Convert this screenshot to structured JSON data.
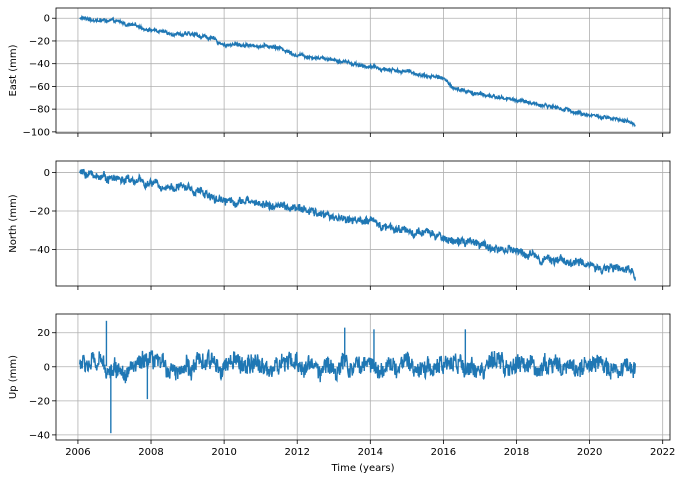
{
  "chart_data": [
    {
      "type": "line",
      "name": "east-panel",
      "ylabel": "East (mm)",
      "xlim": [
        2005.4,
        2022.2
      ],
      "ylim": [
        -101,
        9
      ],
      "yticks": [
        0,
        -20,
        -40,
        -60,
        -80,
        -100
      ],
      "xticks": [
        2006,
        2008,
        2010,
        2012,
        2014,
        2016,
        2018,
        2020,
        2022
      ],
      "show_xtick_labels": false,
      "grid": true,
      "color": "#1f77b4",
      "trend": [
        [
          2006.05,
          0
        ],
        [
          2007.0,
          -3
        ],
        [
          2008.3,
          -12
        ],
        [
          2009.5,
          -16
        ],
        [
          2010.0,
          -23
        ],
        [
          2011.0,
          -24
        ],
        [
          2011.5,
          -26
        ],
        [
          2012.0,
          -32
        ],
        [
          2013.0,
          -36
        ],
        [
          2014.0,
          -43
        ],
        [
          2015.0,
          -47
        ],
        [
          2016.0,
          -53
        ],
        [
          2016.3,
          -62
        ],
        [
          2017.0,
          -67
        ],
        [
          2018.0,
          -72
        ],
        [
          2019.0,
          -78
        ],
        [
          2020.0,
          -85
        ],
        [
          2021.25,
          -93
        ]
      ],
      "noise_sd": 1.2,
      "spikes": []
    },
    {
      "type": "line",
      "name": "north-panel",
      "ylabel": "North (mm)",
      "xlim": [
        2005.4,
        2022.2
      ],
      "ylim": [
        -59,
        6
      ],
      "yticks": [
        0,
        -20,
        -40
      ],
      "xticks": [
        2006,
        2008,
        2010,
        2012,
        2014,
        2016,
        2018,
        2020,
        2022
      ],
      "show_xtick_labels": false,
      "grid": true,
      "color": "#1f77b4",
      "trend": [
        [
          2006.05,
          0
        ],
        [
          2007.0,
          -3
        ],
        [
          2008.0,
          -6
        ],
        [
          2009.0,
          -8
        ],
        [
          2010.0,
          -14
        ],
        [
          2011.0,
          -16
        ],
        [
          2012.0,
          -19
        ],
        [
          2013.0,
          -23
        ],
        [
          2014.0,
          -26
        ],
        [
          2015.0,
          -30
        ],
        [
          2016.0,
          -34
        ],
        [
          2017.0,
          -38
        ],
        [
          2018.0,
          -41
        ],
        [
          2019.0,
          -45
        ],
        [
          2020.0,
          -48
        ],
        [
          2021.25,
          -52
        ]
      ],
      "noise_sd": 1.6,
      "spikes": []
    },
    {
      "type": "line",
      "name": "up-panel",
      "ylabel": "Up (mm)",
      "xlabel": "Time (years)",
      "xlim": [
        2005.4,
        2022.2
      ],
      "ylim": [
        -43,
        31
      ],
      "yticks": [
        20,
        0,
        -20,
        -40
      ],
      "xticks": [
        2006,
        2008,
        2010,
        2012,
        2014,
        2016,
        2018,
        2020,
        2022
      ],
      "show_xtick_labels": true,
      "grid": true,
      "color": "#1f77b4",
      "trend": [
        [
          2006.05,
          2
        ],
        [
          2007.0,
          0
        ],
        [
          2008.0,
          0
        ],
        [
          2009.0,
          0
        ],
        [
          2010.0,
          2
        ],
        [
          2011.0,
          0
        ],
        [
          2012.0,
          1
        ],
        [
          2013.0,
          0
        ],
        [
          2014.0,
          1
        ],
        [
          2015.0,
          0
        ],
        [
          2016.0,
          1
        ],
        [
          2017.0,
          0
        ],
        [
          2018.0,
          0
        ],
        [
          2019.0,
          1
        ],
        [
          2020.0,
          0
        ],
        [
          2021.25,
          0
        ]
      ],
      "noise_sd": 4.2,
      "spikes": [
        [
          2006.9,
          -39
        ],
        [
          2006.78,
          27
        ],
        [
          2007.9,
          -19
        ],
        [
          2013.3,
          23
        ],
        [
          2014.1,
          22
        ],
        [
          2016.6,
          22
        ]
      ]
    }
  ]
}
